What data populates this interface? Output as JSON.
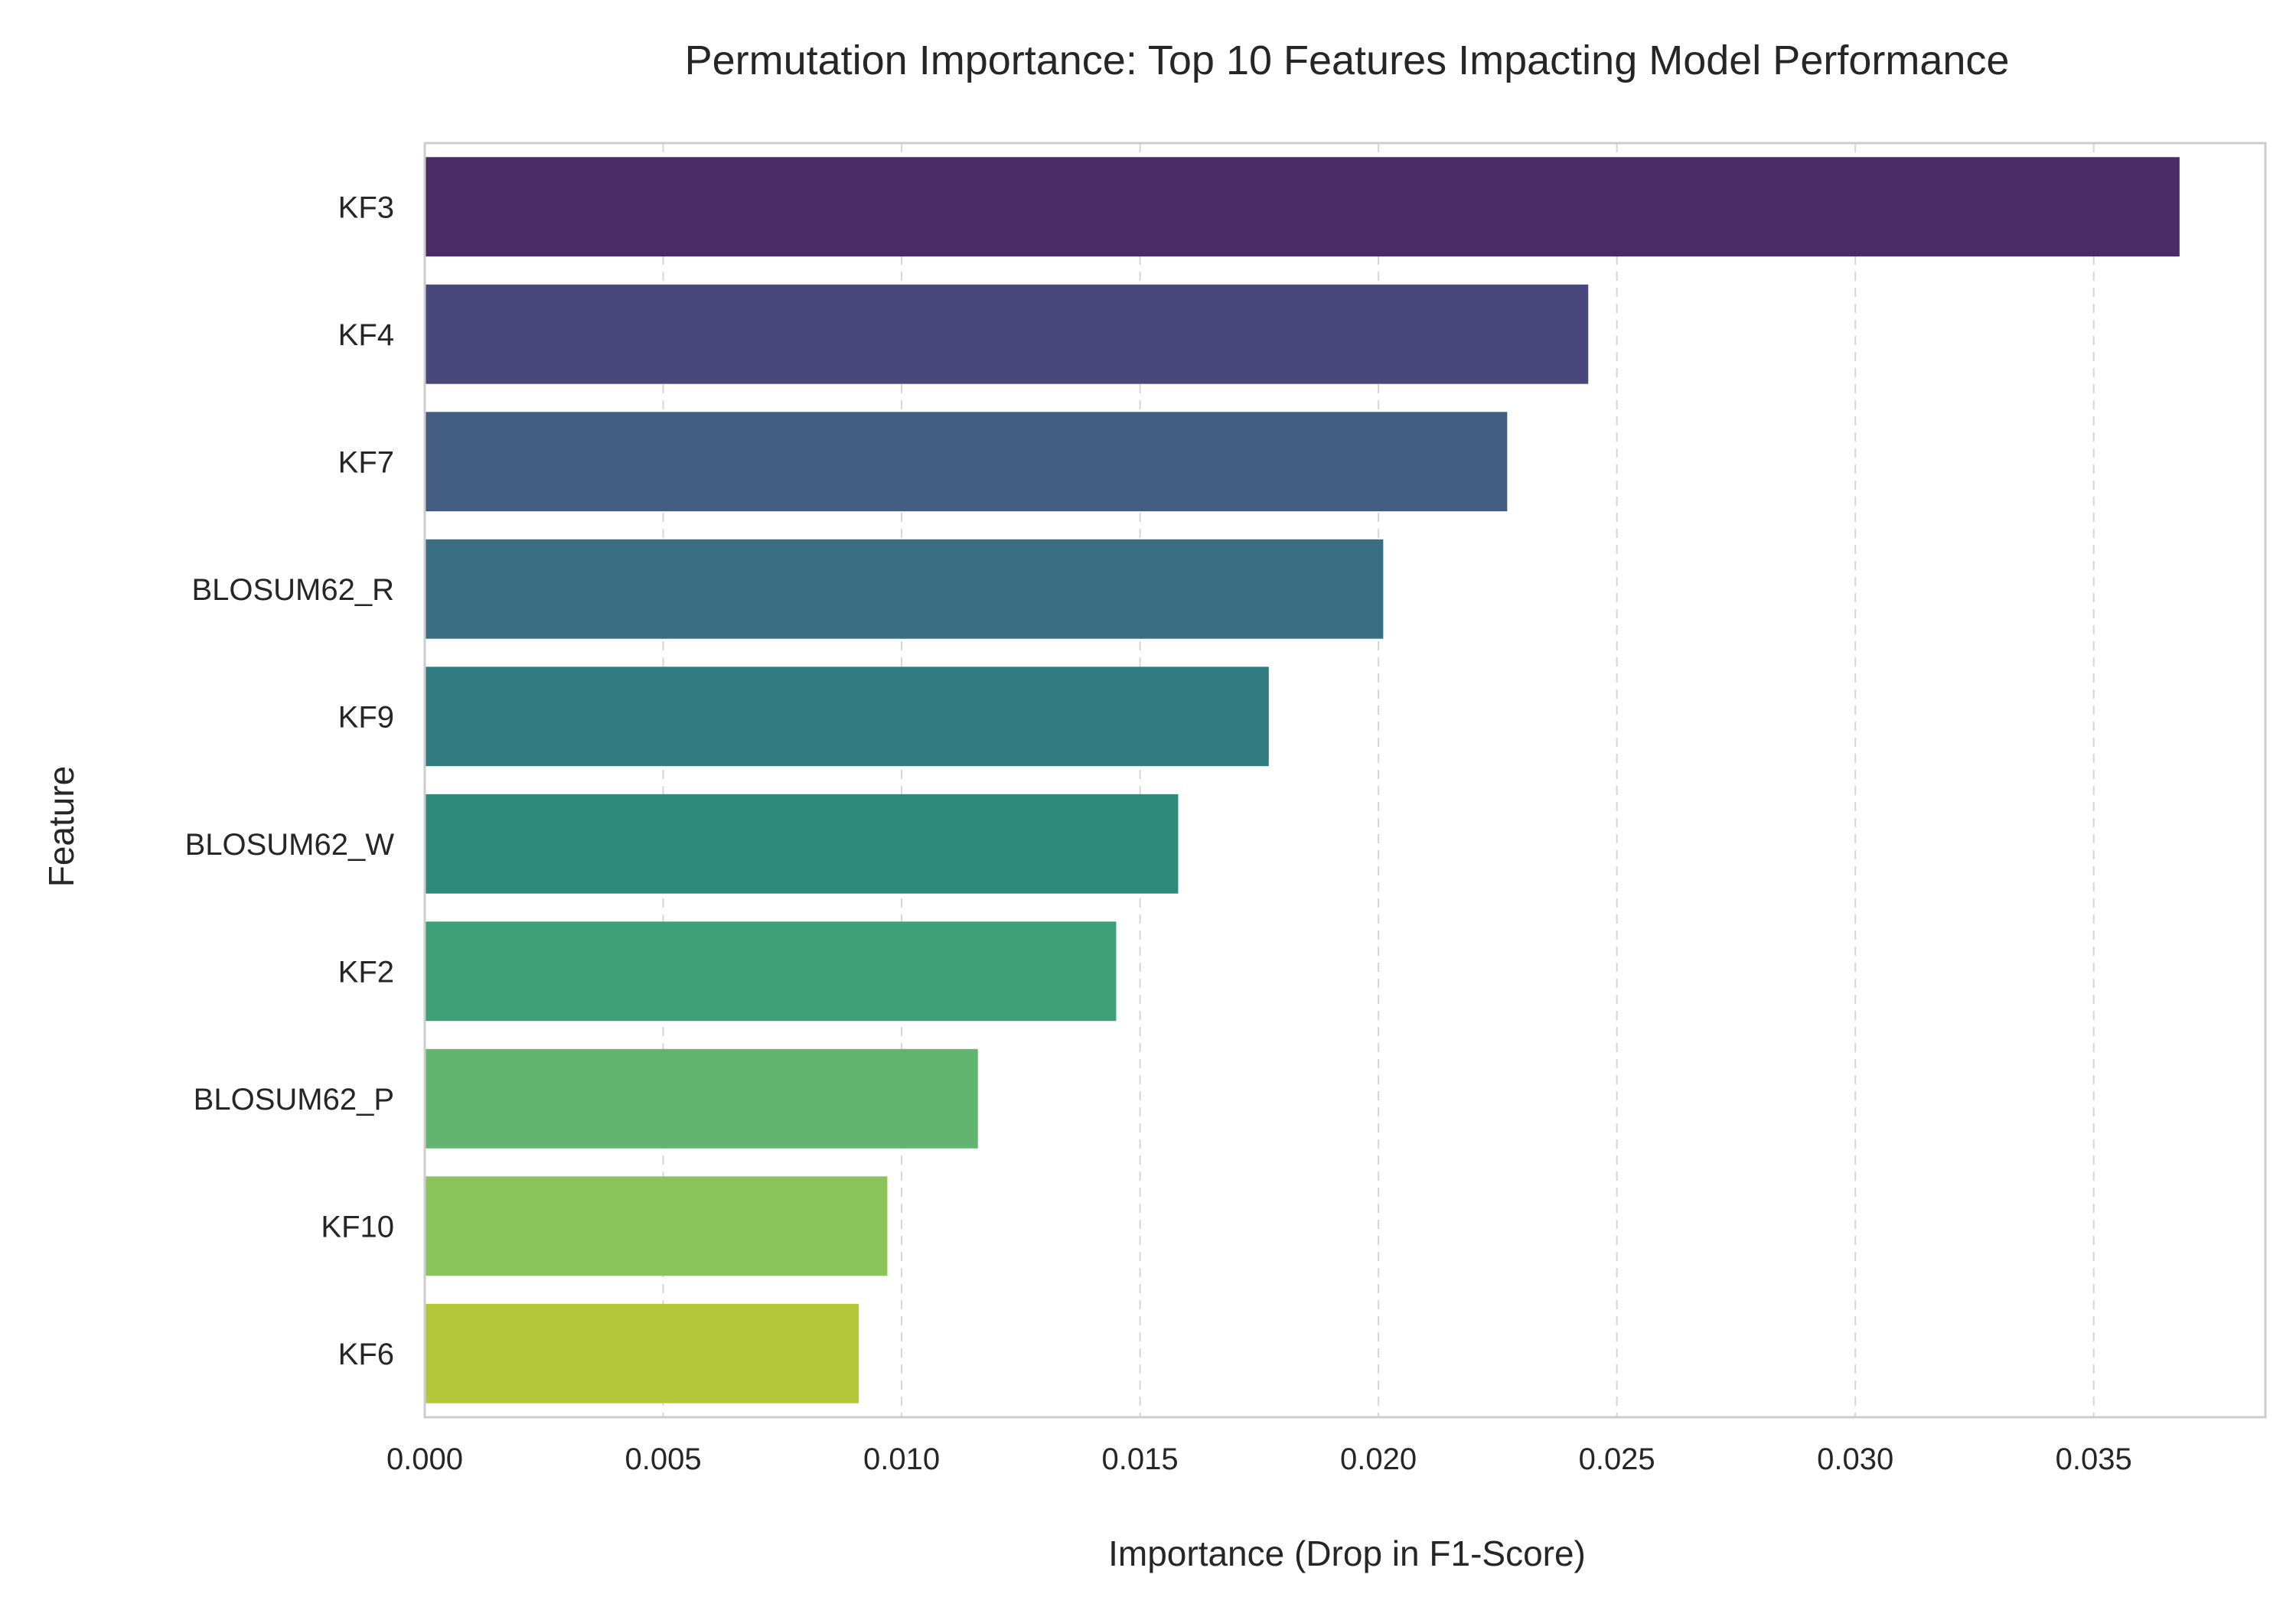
{
  "chart_data": {
    "type": "bar",
    "orientation": "horizontal",
    "title": "Permutation Importance: Top 10 Features Impacting Model Performance",
    "xlabel": "Importance (Drop in F1-Score)",
    "ylabel": "Feature",
    "categories": [
      "KF3",
      "KF4",
      "KF7",
      "BLOSUM62_R",
      "KF9",
      "BLOSUM62_W",
      "KF2",
      "BLOSUM62_P",
      "KF10",
      "KF6"
    ],
    "values": [
      0.0368,
      0.0244,
      0.0227,
      0.0201,
      0.0177,
      0.0158,
      0.0145,
      0.0116,
      0.0097,
      0.0091
    ],
    "colors": [
      "#4b2a68",
      "#4a477c",
      "#435d80",
      "#3a6e82",
      "#307b7f",
      "#2e8b7c",
      "#3e9f78",
      "#62b56f",
      "#8bc45b",
      "#b2c839"
    ],
    "xlim": [
      0,
      0.0386
    ],
    "xticks": [
      "0.000",
      "0.005",
      "0.010",
      "0.015",
      "0.020",
      "0.025",
      "0.030",
      "0.035"
    ],
    "xtick_values": [
      0,
      0.005,
      0.01,
      0.015,
      0.02,
      0.025,
      0.03,
      0.035
    ],
    "grid": "x-dashed",
    "legend": "none"
  }
}
